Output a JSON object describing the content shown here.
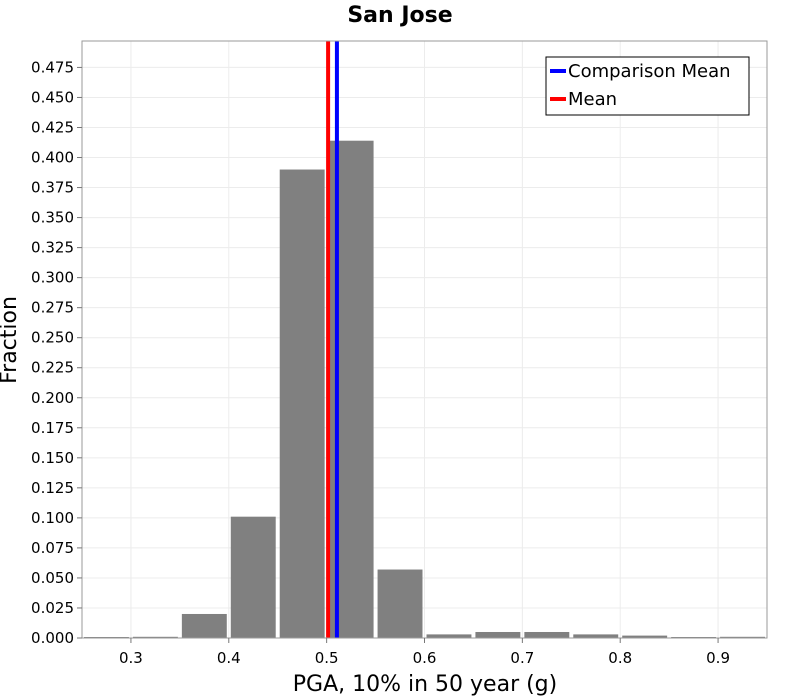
{
  "chart_data": {
    "type": "bar",
    "title": "San Jose",
    "xlabel": "PGA, 10% in 50 year (g)",
    "ylabel": "Fraction",
    "xlim": [
      0.25,
      0.95
    ],
    "ylim": [
      0.0,
      0.497
    ],
    "bin_width": 0.05,
    "bins": [
      {
        "x": 0.275,
        "value": 0.0
      },
      {
        "x": 0.325,
        "value": 0.001
      },
      {
        "x": 0.375,
        "value": 0.02
      },
      {
        "x": 0.425,
        "value": 0.101
      },
      {
        "x": 0.475,
        "value": 0.39
      },
      {
        "x": 0.525,
        "value": 0.414
      },
      {
        "x": 0.575,
        "value": 0.057
      },
      {
        "x": 0.625,
        "value": 0.003
      },
      {
        "x": 0.675,
        "value": 0.005
      },
      {
        "x": 0.725,
        "value": 0.005
      },
      {
        "x": 0.775,
        "value": 0.003
      },
      {
        "x": 0.825,
        "value": 0.002
      },
      {
        "x": 0.875,
        "value": 0.0
      },
      {
        "x": 0.925,
        "value": 0.001
      }
    ],
    "bar_color": "#808080",
    "x_ticks": [
      0.3,
      0.4,
      0.5,
      0.6,
      0.7,
      0.8,
      0.9
    ],
    "x_tick_labels": [
      "0.3",
      "0.4",
      "0.5",
      "0.6",
      "0.7",
      "0.8",
      "0.9"
    ],
    "y_ticks": [
      0.0,
      0.025,
      0.05,
      0.075,
      0.1,
      0.125,
      0.15,
      0.175,
      0.2,
      0.225,
      0.25,
      0.275,
      0.3,
      0.325,
      0.35,
      0.375,
      0.4,
      0.425,
      0.45,
      0.475
    ],
    "y_tick_labels": [
      "0.000",
      "0.025",
      "0.050",
      "0.075",
      "0.100",
      "0.125",
      "0.150",
      "0.175",
      "0.200",
      "0.225",
      "0.250",
      "0.275",
      "0.300",
      "0.325",
      "0.350",
      "0.375",
      "0.400",
      "0.425",
      "0.450",
      "0.475"
    ],
    "vertical_lines": [
      {
        "name": "Comparison Mean",
        "x": 0.5105,
        "color": "#0000ff"
      },
      {
        "name": "Mean",
        "x": 0.5015,
        "color": "#ff0000"
      }
    ],
    "legend": {
      "position": "top-right",
      "entries": [
        {
          "label": "Comparison Mean",
          "color": "#0000ff"
        },
        {
          "label": "Mean",
          "color": "#ff0000"
        }
      ]
    },
    "grid": true
  }
}
